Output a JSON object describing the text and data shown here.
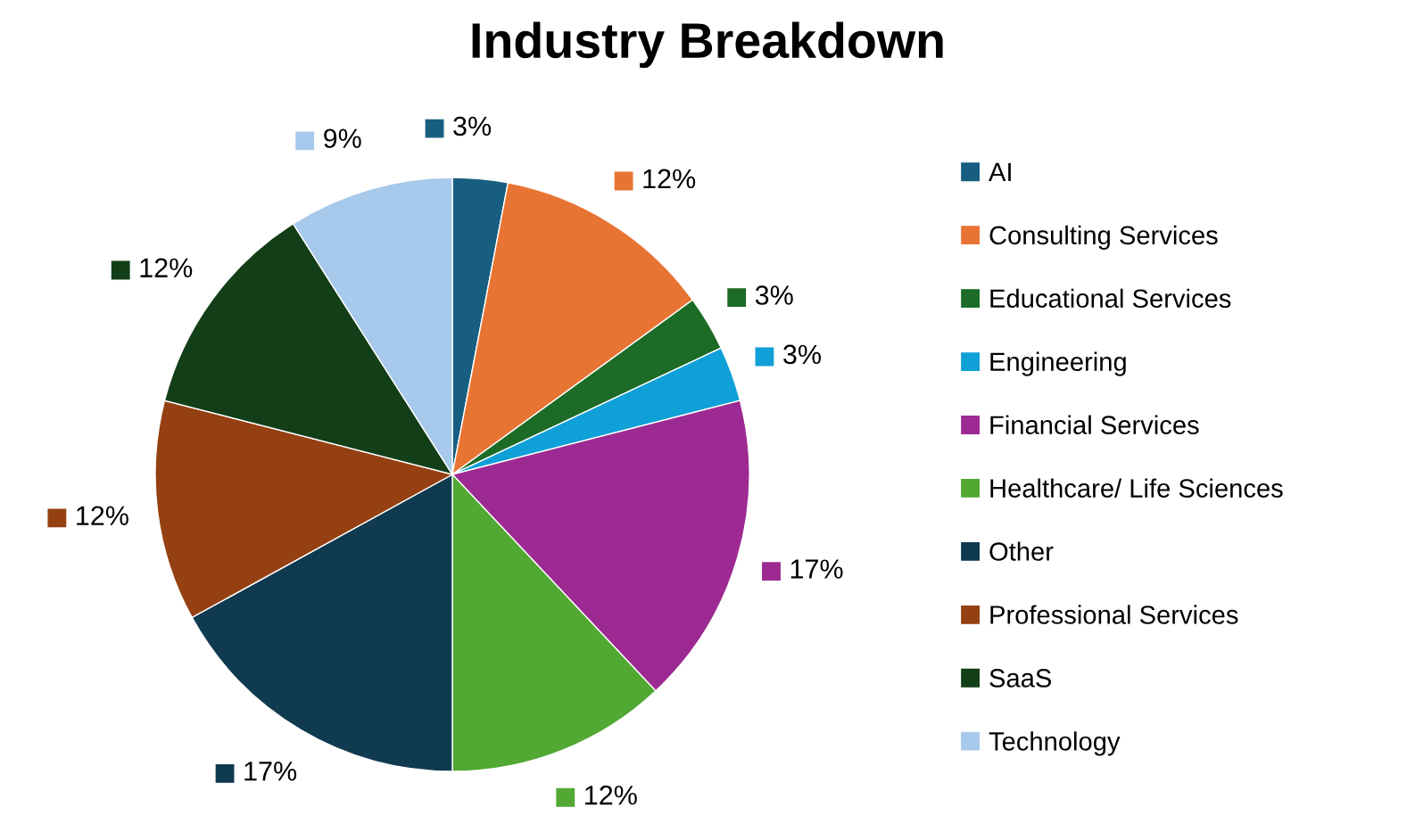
{
  "chart_data": {
    "type": "pie",
    "title": "Industry Breakdown",
    "categories": [
      "AI",
      "Consulting Services",
      "Educational Services",
      "Engineering",
      "Financial Services",
      "Healthcare/ Life Sciences",
      "Other",
      "Professional Services",
      "SaaS",
      "Technology"
    ],
    "values": [
      3,
      12,
      3,
      3,
      17,
      12,
      17,
      12,
      12,
      9
    ],
    "value_labels": [
      "3%",
      "12%",
      "3%",
      "3%",
      "17%",
      "12%",
      "17%",
      "12%",
      "12%",
      "9%"
    ],
    "colors": [
      "#175e80",
      "#e87434",
      "#1c6b26",
      "#10a0d8",
      "#9d2a92",
      "#51a832",
      "#0f3a50",
      "#954012",
      "#123e18",
      "#a7c9eb"
    ],
    "legend": "right"
  }
}
